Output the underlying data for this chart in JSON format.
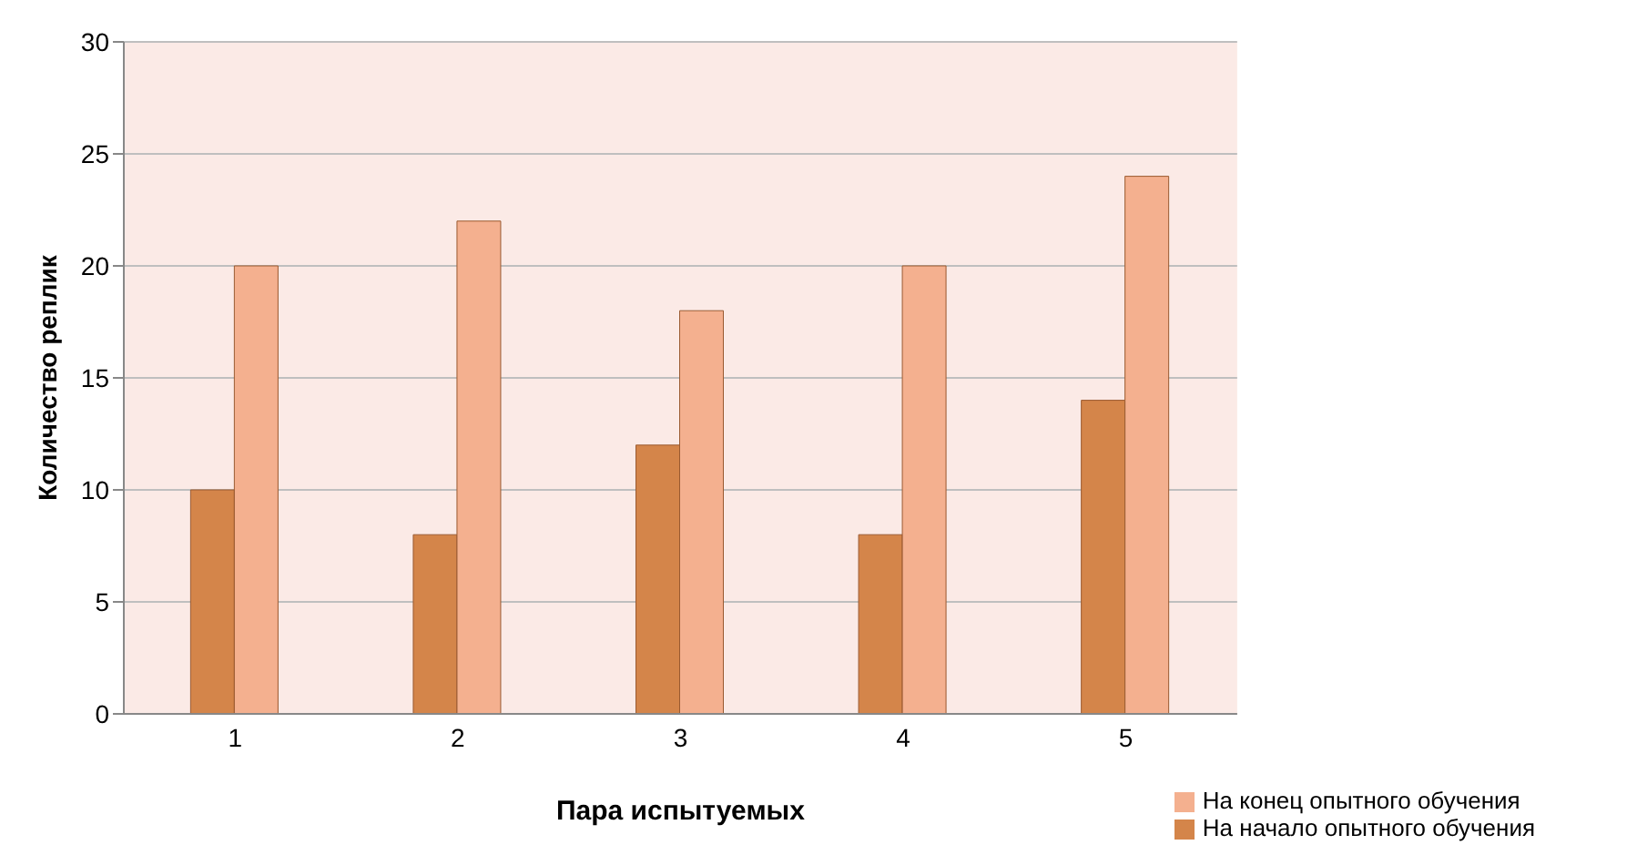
{
  "chart_data": {
    "type": "bar",
    "xlabel": "Пара испытуемых",
    "ylabel": "Количество реплик",
    "categories": [
      "1",
      "2",
      "3",
      "4",
      "5"
    ],
    "series": [
      {
        "name": "На начало опытного обучения",
        "color": "#d4854a",
        "values": [
          10,
          8,
          12,
          8,
          14
        ]
      },
      {
        "name": "На конец опытного обучения",
        "color": "#f4b08f",
        "values": [
          20,
          22,
          18,
          20,
          24
        ]
      }
    ],
    "ylim": [
      0,
      30
    ],
    "yticks": [
      0,
      5,
      10,
      15,
      20,
      25,
      30
    ],
    "grid": "y",
    "legend": "bottom right"
  }
}
